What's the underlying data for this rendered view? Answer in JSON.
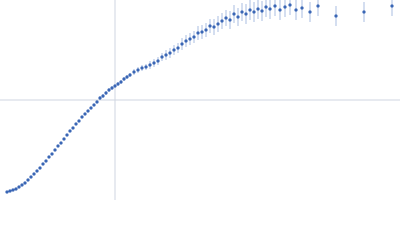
{
  "chart_data": {
    "type": "scatter",
    "x": [
      7,
      10,
      13,
      16,
      19,
      22,
      25,
      28,
      31,
      34,
      37,
      40,
      43,
      46,
      49,
      52,
      55,
      58,
      61,
      64,
      67,
      70,
      73,
      76,
      79,
      82,
      85,
      88,
      91,
      94,
      97,
      100,
      103,
      106,
      109,
      112,
      115,
      118,
      121,
      124,
      127,
      130,
      134,
      138,
      142,
      146,
      150,
      154,
      158,
      162,
      166,
      170,
      174,
      178,
      182,
      186,
      190,
      194,
      198,
      202,
      206,
      210,
      214,
      218,
      222,
      226,
      230,
      234,
      238,
      242,
      246,
      250,
      254,
      258,
      262,
      266,
      270,
      275,
      280,
      285,
      290,
      296,
      302,
      310,
      318,
      336,
      364,
      392
    ],
    "values": [
      8,
      9,
      10,
      11,
      13,
      15,
      17,
      20,
      23,
      26,
      29,
      32,
      36,
      39,
      43,
      46,
      50,
      54,
      57,
      61,
      65,
      69,
      72,
      76,
      79,
      83,
      86,
      89,
      92,
      95,
      98,
      102,
      104,
      107,
      110,
      112,
      114,
      116,
      118,
      121,
      123,
      125,
      128,
      130,
      132,
      133,
      135,
      137,
      139,
      143,
      145,
      147,
      150,
      152,
      156,
      159,
      161,
      163,
      167,
      168,
      170,
      174,
      173,
      176,
      179,
      182,
      180,
      186,
      183,
      188,
      186,
      190,
      188,
      191,
      189,
      193,
      191,
      194,
      190,
      193,
      195,
      190,
      192,
      188,
      194,
      184,
      188,
      194
    ],
    "errors": [
      1,
      1,
      1,
      1,
      1,
      1,
      1,
      1,
      1,
      1,
      1,
      1,
      1,
      1,
      1,
      1,
      1,
      1,
      1,
      1,
      1,
      1,
      1,
      1,
      1,
      1,
      1,
      1,
      1,
      1,
      1,
      2,
      2,
      2,
      2,
      2,
      2,
      2,
      2,
      2,
      2,
      2,
      3,
      3,
      3,
      3,
      4,
      4,
      4,
      4,
      5,
      5,
      5,
      5,
      6,
      6,
      6,
      6,
      7,
      7,
      7,
      7,
      8,
      8,
      8,
      8,
      9,
      9,
      9,
      9,
      10,
      10,
      10,
      10,
      10,
      10,
      10,
      10,
      10,
      10,
      10,
      10,
      10,
      10,
      10,
      10,
      10,
      10
    ],
    "color": "#3a66b5",
    "error_color": "#aabde0",
    "xlim": [
      0,
      400
    ],
    "ylim": [
      0,
      200
    ],
    "xticks": [
      115
    ],
    "yticks": [
      100
    ],
    "grid": true
  }
}
